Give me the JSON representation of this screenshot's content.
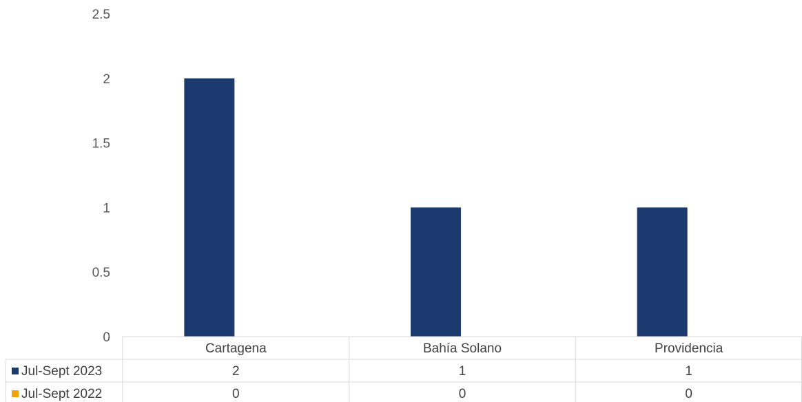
{
  "chart_data": {
    "type": "bar",
    "title": "",
    "xlabel": "",
    "ylabel": "",
    "categories": [
      "Cartagena",
      "Bahía Solano",
      "Providencia"
    ],
    "series": [
      {
        "name": "Jul-Sept 2023",
        "values": [
          2,
          1,
          1
        ],
        "color": "#1b3a6e"
      },
      {
        "name": "Jul-Sept 2022",
        "values": [
          0,
          0,
          0
        ],
        "color": "#f0a30a"
      }
    ],
    "ylim": [
      0,
      2.5
    ],
    "yticks": [
      "0",
      "0.5",
      "1",
      "1.5",
      "2",
      "2.5"
    ],
    "ytick_values": [
      0,
      0.5,
      1,
      1.5,
      2,
      2.5
    ],
    "grid": false,
    "legend": "data-table-left",
    "data_table": {
      "rows": [
        {
          "label": "Jul-Sept 2023",
          "cells": [
            "2",
            "1",
            "1"
          ]
        },
        {
          "label": "Jul-Sept 2022",
          "cells": [
            "0",
            "0",
            "0"
          ]
        }
      ]
    }
  }
}
